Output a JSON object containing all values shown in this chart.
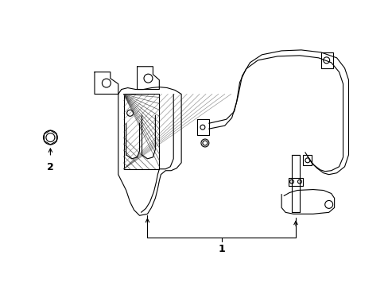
{
  "background_color": "#ffffff",
  "line_color": "#000000",
  "label1": "1",
  "label2": "2",
  "figsize": [
    4.89,
    3.6
  ],
  "dpi": 100
}
